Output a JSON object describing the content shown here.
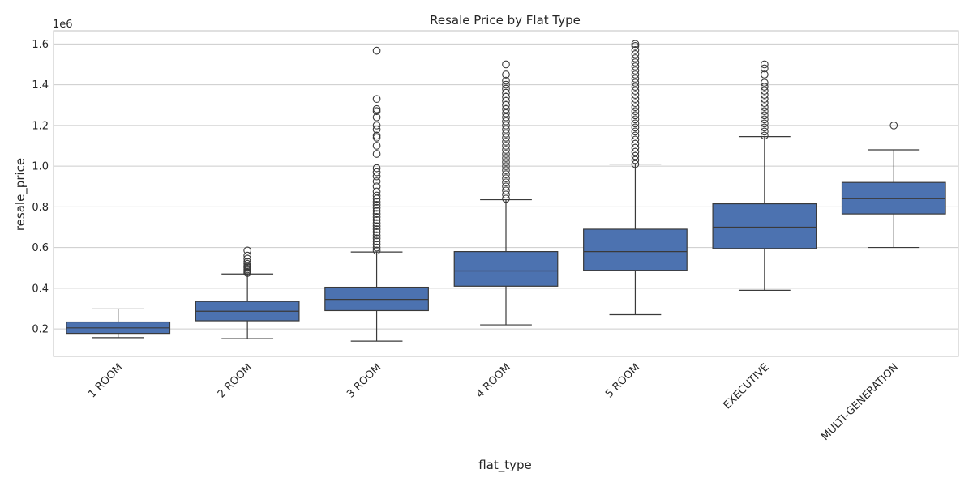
{
  "chart_data": {
    "type": "box",
    "title": "Resale Price by Flat Type",
    "xlabel": "flat_type",
    "ylabel": "resale_price",
    "y_offset_label": "1e6",
    "ylim": [
      0.065,
      1.665
    ],
    "y_ticks": [
      0.2,
      0.4,
      0.6,
      0.8,
      1.0,
      1.2,
      1.4,
      1.6
    ],
    "y_tick_labels": [
      "0.2",
      "0.4",
      "0.6",
      "0.8",
      "1.0",
      "1.2",
      "1.4",
      "1.6"
    ],
    "grid": true,
    "box_color": "#4c72b0",
    "line_color": "#3a3a3a",
    "categories": [
      "1 ROOM",
      "2 ROOM",
      "3 ROOM",
      "4 ROOM",
      "5 ROOM",
      "EXECUTIVE",
      "MULTI-GENERATION"
    ],
    "boxes": [
      {
        "category": "1 ROOM",
        "whisker_low": 0.157,
        "q1": 0.178,
        "median": 0.205,
        "q3": 0.234,
        "whisker_high": 0.298,
        "outliers": []
      },
      {
        "category": "2 ROOM",
        "whisker_low": 0.152,
        "q1": 0.24,
        "median": 0.287,
        "q3": 0.335,
        "whisker_high": 0.47,
        "outliers": [
          0.475,
          0.48,
          0.487,
          0.493,
          0.5,
          0.505,
          0.51,
          0.52,
          0.53,
          0.545,
          0.56,
          0.585
        ]
      },
      {
        "category": "3 ROOM",
        "whisker_low": 0.14,
        "q1": 0.29,
        "median": 0.345,
        "q3": 0.405,
        "whisker_high": 0.578,
        "outliers": [
          0.585,
          0.6,
          0.615,
          0.63,
          0.645,
          0.66,
          0.675,
          0.69,
          0.705,
          0.72,
          0.735,
          0.75,
          0.765,
          0.78,
          0.795,
          0.81,
          0.825,
          0.84,
          0.855,
          0.875,
          0.9,
          0.925,
          0.95,
          0.97,
          0.99,
          1.06,
          1.1,
          1.14,
          1.15,
          1.18,
          1.2,
          1.24,
          1.27,
          1.28,
          1.33,
          1.567
        ]
      },
      {
        "category": "4 ROOM",
        "whisker_low": 0.22,
        "q1": 0.41,
        "median": 0.485,
        "q3": 0.58,
        "whisker_high": 0.835,
        "outliers": [
          0.84,
          0.86,
          0.88,
          0.9,
          0.92,
          0.94,
          0.96,
          0.98,
          1.0,
          1.02,
          1.04,
          1.06,
          1.08,
          1.1,
          1.12,
          1.14,
          1.16,
          1.18,
          1.2,
          1.22,
          1.24,
          1.26,
          1.28,
          1.3,
          1.32,
          1.34,
          1.36,
          1.38,
          1.4,
          1.42,
          1.45,
          1.5
        ]
      },
      {
        "category": "5 ROOM",
        "whisker_low": 0.27,
        "q1": 0.488,
        "median": 0.58,
        "q3": 0.69,
        "whisker_high": 1.01,
        "outliers": [
          1.01,
          1.03,
          1.05,
          1.07,
          1.09,
          1.11,
          1.13,
          1.15,
          1.17,
          1.19,
          1.21,
          1.23,
          1.25,
          1.27,
          1.29,
          1.31,
          1.33,
          1.35,
          1.37,
          1.39,
          1.41,
          1.43,
          1.45,
          1.47,
          1.49,
          1.51,
          1.53,
          1.55,
          1.57,
          1.59,
          1.6
        ]
      },
      {
        "category": "EXECUTIVE",
        "whisker_low": 0.39,
        "q1": 0.595,
        "median": 0.7,
        "q3": 0.815,
        "whisker_high": 1.145,
        "outliers": [
          1.15,
          1.17,
          1.19,
          1.21,
          1.23,
          1.25,
          1.27,
          1.29,
          1.31,
          1.33,
          1.35,
          1.37,
          1.39,
          1.41,
          1.45,
          1.48,
          1.5
        ]
      },
      {
        "category": "MULTI-GENERATION",
        "whisker_low": 0.6,
        "q1": 0.765,
        "median": 0.84,
        "q3": 0.92,
        "whisker_high": 1.08,
        "outliers": [
          1.2
        ]
      }
    ]
  }
}
